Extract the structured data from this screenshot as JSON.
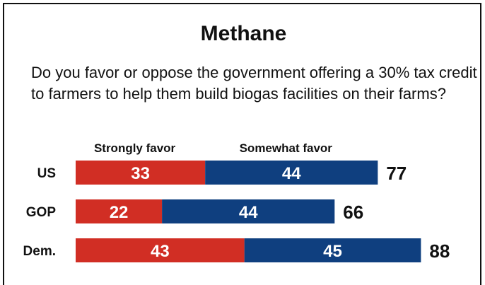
{
  "chart_data": {
    "type": "bar",
    "stacked": true,
    "orientation": "horizontal",
    "title": "Methane",
    "subtitle": "Do you favor or oppose the government offering a 30% tax credit to farmers to help them build biogas facilities on their farms?",
    "categories": [
      "US",
      "GOP",
      "Dem."
    ],
    "series": [
      {
        "name": "Strongly favor",
        "values": [
          33,
          22,
          43
        ],
        "color": "#d12e24"
      },
      {
        "name": "Somewhat favor",
        "values": [
          44,
          44,
          45
        ],
        "color": "#0f3f7f"
      }
    ],
    "totals": [
      77,
      66,
      88
    ],
    "legend": "top"
  }
}
